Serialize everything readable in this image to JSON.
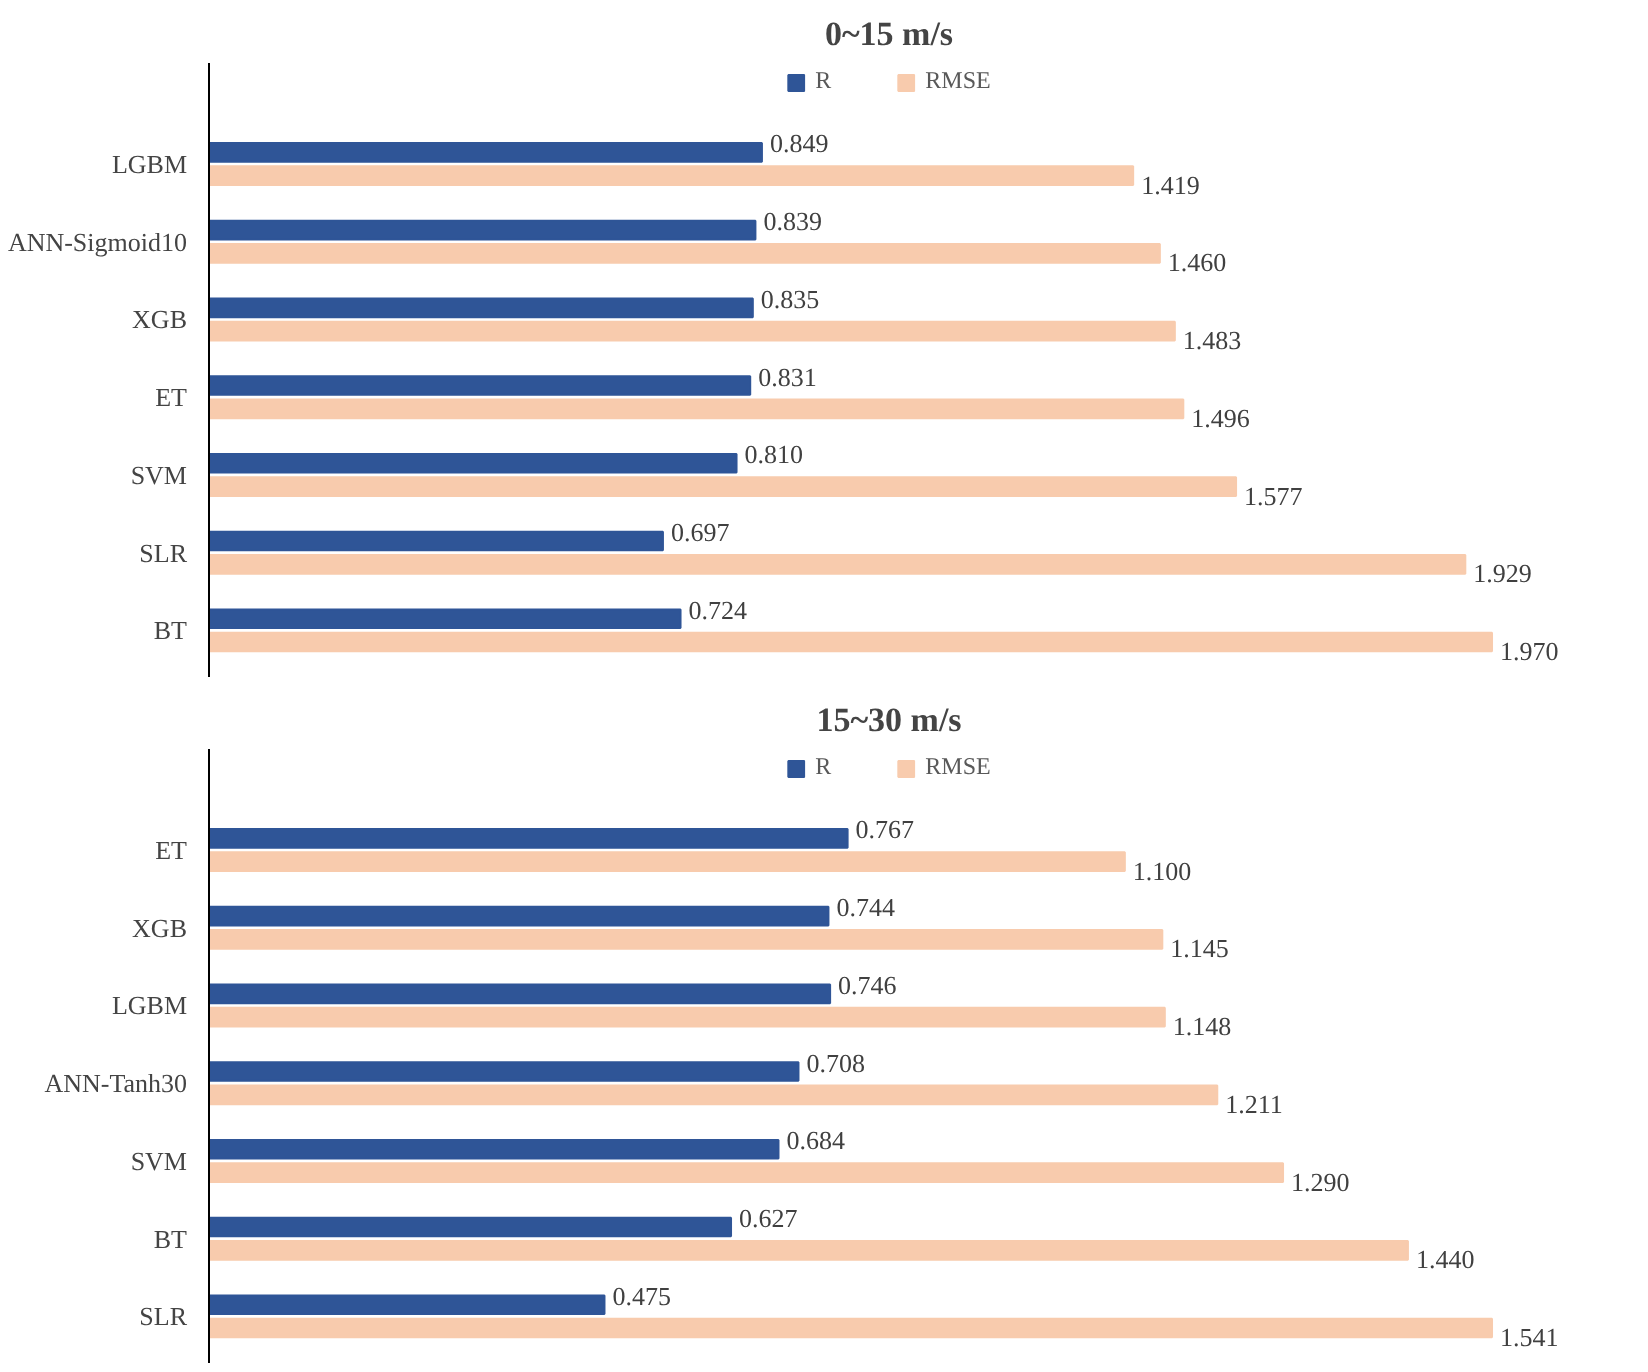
{
  "chart_data": [
    {
      "type": "bar",
      "orientation": "horizontal",
      "title": "0~15 m/s",
      "categories": [
        "LGBM",
        "ANN-Sigmoid10",
        "XGB",
        "ET",
        "SVM",
        "SLR",
        "BT"
      ],
      "series": [
        {
          "name": "R",
          "color": "#2f5597",
          "values": [
            0.849,
            0.839,
            0.835,
            0.831,
            0.81,
            0.697,
            0.724
          ],
          "value_labels": [
            "0.849",
            "0.839",
            "0.835",
            "0.831",
            "0.810",
            "0.697",
            "0.724"
          ]
        },
        {
          "name": "RMSE",
          "color": "#f8cbad",
          "values": [
            1.419,
            1.46,
            1.483,
            1.496,
            1.577,
            1.929,
            1.97
          ],
          "value_labels": [
            "1.419",
            "1.460",
            "1.483",
            "1.496",
            "1.577",
            "1.929",
            "1.970"
          ]
        }
      ],
      "legend": "top",
      "grid": false,
      "tick_labels": "y"
    },
    {
      "type": "bar",
      "orientation": "horizontal",
      "title": "15~30 m/s",
      "categories": [
        "ET",
        "XGB",
        "LGBM",
        "ANN-Tanh30",
        "SVM",
        "BT",
        "SLR"
      ],
      "series": [
        {
          "name": "R",
          "color": "#2f5597",
          "values": [
            0.767,
            0.744,
            0.746,
            0.708,
            0.684,
            0.627,
            0.475
          ],
          "value_labels": [
            "0.767",
            "0.744",
            "0.746",
            "0.708",
            "0.684",
            "0.627",
            "0.475"
          ]
        },
        {
          "name": "RMSE",
          "color": "#f8cbad",
          "values": [
            1.1,
            1.145,
            1.148,
            1.211,
            1.29,
            1.44,
            1.541
          ],
          "value_labels": [
            "1.100",
            "1.145",
            "1.148",
            "1.211",
            "1.290",
            "1.440",
            "1.541"
          ]
        }
      ],
      "legend": "top",
      "grid": false,
      "tick_labels": "y"
    }
  ]
}
